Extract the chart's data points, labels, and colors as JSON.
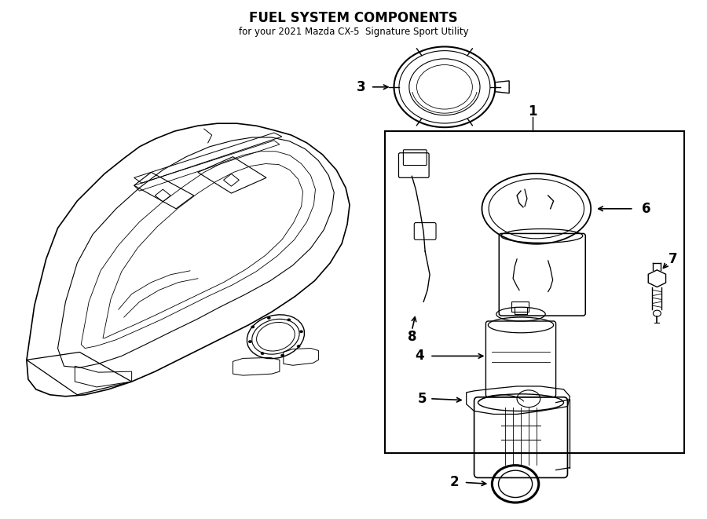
{
  "title": "FUEL SYSTEM COMPONENTS",
  "subtitle": "for your 2021 Mazda CX-5  Signature Sport Utility",
  "background_color": "#ffffff",
  "line_color": "#000000",
  "fig_width": 9.0,
  "fig_height": 6.61,
  "dpi": 100
}
